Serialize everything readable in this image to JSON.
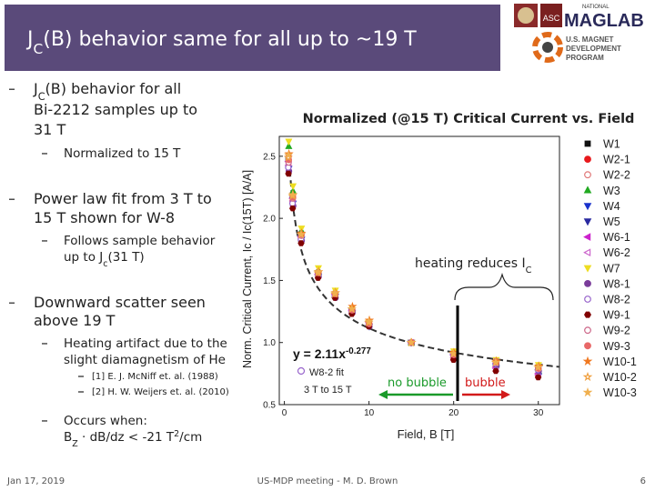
{
  "header": {
    "title": [
      "J",
      {
        "sub": "C"
      },
      "(B) behavior same for all up to ~19 T"
    ]
  },
  "logos": {
    "national": "NATIONAL",
    "asc": "ASC",
    "maglab": "MAGLAB",
    "usmdp": [
      "U.S. MAGNET",
      "DEVELOPMENT",
      "PROGRAM"
    ]
  },
  "bullets": [
    {
      "level": 0,
      "lines": [
        [
          "J",
          {
            "sub": "C"
          },
          "(B) behavior for all"
        ],
        [
          "Bi-2212 samples up to"
        ],
        [
          "31 T"
        ]
      ]
    },
    {
      "level": 1,
      "lines": [
        [
          "Normalized to 15 T"
        ]
      ]
    },
    {
      "level": 0,
      "lines": [
        [
          "Power law fit from 3 T to"
        ],
        [
          "15 T shown for W-8"
        ]
      ]
    },
    {
      "level": 1,
      "lines": [
        [
          "Follows sample behavior"
        ],
        [
          "up to J",
          {
            "sub": "c"
          },
          "(31 T)"
        ]
      ]
    },
    {
      "level": 0,
      "lines": [
        [
          "Downward scatter seen"
        ],
        [
          "above 19 T"
        ]
      ]
    },
    {
      "level": 1,
      "lines": [
        [
          "Heating artifact due to the"
        ],
        [
          "slight diamagnetism of He"
        ]
      ]
    },
    {
      "level": 2,
      "lines": [
        [
          "[1] E. J. McNiff et. al. (1988)"
        ]
      ]
    },
    {
      "level": 2,
      "lines": [
        [
          "[2] H. W. Weijers et. al. (2010)"
        ]
      ]
    },
    {
      "level": 1,
      "lines": [
        [
          "Occurs when:"
        ],
        [
          "B",
          {
            "sub": "Z"
          },
          " · dB/dz < -21 T",
          {
            "sup": "2"
          },
          "/cm"
        ]
      ]
    }
  ],
  "footer": {
    "date": "Jan 17, 2019",
    "meeting": "US-MDP meeting - M. D. Brown",
    "page": "6"
  },
  "chart_data": {
    "type": "scatter",
    "title": "Normalized (@15 T) Critical Current vs. Field",
    "x_label": "Field, B [T]",
    "y_label": "Norm. Critical Current, Ic / Ic(15T) [A/A]",
    "xlim": [
      -0.6,
      32.5
    ],
    "ylim": [
      0.5,
      2.66
    ],
    "xticks": [
      0,
      10,
      20,
      30
    ],
    "yticks": [
      {
        "value": 0.5,
        "label": "0.5"
      },
      {
        "value": 1.0,
        "label": "1.0"
      },
      1.5,
      {
        "value": 2.0,
        "label": "2.0"
      },
      2.5
    ],
    "x": [
      0.5,
      1,
      2,
      4,
      6,
      8,
      10,
      15,
      20,
      25,
      30
    ],
    "series": [
      {
        "name": "W1",
        "color": "#111111",
        "marker": "square",
        "filled": true,
        "values": [
          2.48,
          2.18,
          1.86,
          1.56,
          1.38,
          1.26,
          1.15,
          1.0,
          0.91,
          0.83,
          0.8
        ]
      },
      {
        "name": "W2-1",
        "color": "#e8191c",
        "marker": "circle",
        "filled": true,
        "values": [
          2.42,
          2.14,
          1.84,
          1.54,
          1.37,
          1.24,
          1.14,
          1.0,
          0.88,
          0.8,
          0.74
        ]
      },
      {
        "name": "W2-2",
        "color": "#e07878",
        "marker": "circle",
        "filled": false,
        "values": [
          2.5,
          2.2,
          1.88,
          1.57,
          1.4,
          1.27,
          1.16,
          1.0,
          0.92,
          0.84,
          0.79
        ]
      },
      {
        "name": "W3",
        "color": "#22aa22",
        "marker": "triangle-up",
        "filled": true,
        "values": [
          2.58,
          2.22,
          1.9,
          1.58,
          1.41,
          1.27,
          1.17,
          1.0,
          0.9,
          0.82,
          0.77
        ]
      },
      {
        "name": "W4",
        "color": "#1a33cc",
        "marker": "triangle-down",
        "filled": true,
        "values": [
          2.4,
          2.12,
          1.83,
          1.53,
          1.37,
          1.24,
          1.13,
          1.0,
          0.87,
          0.79,
          0.73
        ]
      },
      {
        "name": "W5",
        "color": "#2a2aa0",
        "marker": "triangle-down",
        "filled": true,
        "values": [
          2.44,
          2.15,
          1.85,
          1.55,
          1.38,
          1.25,
          1.15,
          1.0,
          0.89,
          0.81,
          0.76
        ]
      },
      {
        "name": "W6-1",
        "color": "#cc22cc",
        "marker": "triangle-left",
        "filled": true,
        "values": [
          2.46,
          2.16,
          1.85,
          1.55,
          1.39,
          1.26,
          1.16,
          1.0,
          0.9,
          0.8,
          0.75
        ]
      },
      {
        "name": "W6-2",
        "color": "#cc66cc",
        "marker": "triangle-left",
        "filled": false,
        "values": [
          2.43,
          2.14,
          1.84,
          1.54,
          1.38,
          1.25,
          1.14,
          1.0,
          0.88,
          0.79,
          0.74
        ]
      },
      {
        "name": "W7",
        "color": "#eedd22",
        "marker": "triangle-down",
        "filled": true,
        "values": [
          2.62,
          2.26,
          1.92,
          1.6,
          1.42,
          1.28,
          1.17,
          1.0,
          0.93,
          0.86,
          0.82
        ]
      },
      {
        "name": "W8-1",
        "color": "#7a3c9a",
        "marker": "circle",
        "filled": true,
        "values": [
          2.38,
          2.1,
          1.82,
          1.53,
          1.36,
          1.24,
          1.13,
          1.0,
          0.89,
          0.82,
          0.77
        ]
      },
      {
        "name": "W8-2",
        "color": "#9966cc",
        "marker": "circle",
        "filled": false,
        "values": [
          2.41,
          2.12,
          1.83,
          1.54,
          1.37,
          1.24,
          1.14,
          1.0,
          0.9,
          0.83,
          0.78
        ]
      },
      {
        "name": "W9-1",
        "color": "#800000",
        "marker": "hexagon",
        "filled": true,
        "values": [
          2.36,
          2.08,
          1.8,
          1.52,
          1.36,
          1.23,
          1.13,
          1.0,
          0.86,
          0.77,
          0.72
        ]
      },
      {
        "name": "W9-2",
        "color": "#cc6688",
        "marker": "circle",
        "filled": false,
        "values": [
          2.45,
          2.16,
          1.86,
          1.56,
          1.39,
          1.26,
          1.15,
          1.0,
          0.91,
          0.85,
          0.8
        ]
      },
      {
        "name": "W9-3",
        "color": "#e86868",
        "marker": "circle",
        "filled": true,
        "values": [
          2.47,
          2.17,
          1.87,
          1.56,
          1.39,
          1.26,
          1.15,
          1.0,
          0.9,
          0.84,
          0.79
        ]
      },
      {
        "name": "W10-1",
        "color": "#f07820",
        "marker": "star",
        "filled": true,
        "values": [
          2.52,
          2.19,
          1.88,
          1.57,
          1.4,
          1.29,
          1.18,
          1.0,
          0.92,
          0.85,
          0.81
        ]
      },
      {
        "name": "W10-2",
        "color": "#f0a040",
        "marker": "star",
        "filled": false,
        "values": [
          2.49,
          2.18,
          1.87,
          1.56,
          1.39,
          1.27,
          1.16,
          1.0,
          0.91,
          0.84,
          0.8
        ]
      },
      {
        "name": "W10-3",
        "color": "#f0b050",
        "marker": "star",
        "filled": true,
        "values": [
          2.51,
          2.19,
          1.87,
          1.57,
          1.4,
          1.27,
          1.17,
          1.0,
          0.91,
          0.84,
          0.8
        ]
      }
    ],
    "fit": {
      "label": "y = 2.11x",
      "exponent": "-0.277",
      "name": "W8-2 fit",
      "range": "3 T to 15 T",
      "a": 2.11,
      "b": -0.277
    },
    "annotations": {
      "heating": [
        "heating reduces I",
        {
          "sub": "C"
        }
      ],
      "no_bubble": "no bubble",
      "bubble": "bubble"
    }
  }
}
